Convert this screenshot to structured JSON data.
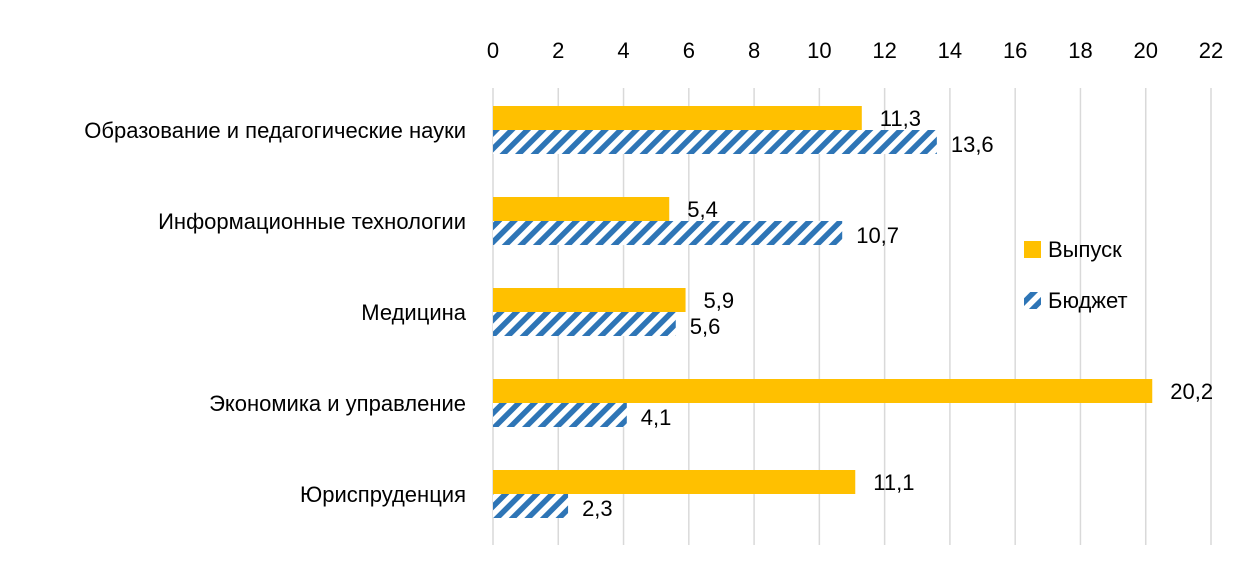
{
  "chart_data": {
    "type": "bar",
    "orientation": "horizontal",
    "title": "",
    "xlabel": "",
    "ylabel": "",
    "xlim": [
      0,
      22
    ],
    "x_ticks": [
      0,
      2,
      4,
      6,
      8,
      10,
      12,
      14,
      16,
      18,
      20,
      22
    ],
    "x_tick_labels": [
      "0",
      "2",
      "4",
      "6",
      "8",
      "10",
      "12",
      "14",
      "16",
      "18",
      "20",
      "22"
    ],
    "axis_position": "top",
    "grid": "vertical",
    "legend_position": "right",
    "categories": [
      "Образование и педагогические науки",
      "Информационные технологии",
      "Медицина",
      "Экономика и управление",
      "Юриспруденция"
    ],
    "series": [
      {
        "name": "Выпуск",
        "color": "#FFC000",
        "pattern": "solid",
        "values": [
          11.3,
          5.4,
          5.9,
          20.2,
          11.1
        ],
        "labels": [
          "11,3",
          "5,4",
          "5,9",
          "20,2",
          "11,1"
        ]
      },
      {
        "name": "Бюджет",
        "color": "#2E75B6",
        "pattern": "diagonal-hatch",
        "values": [
          13.6,
          10.7,
          5.6,
          4.1,
          2.3
        ],
        "labels": [
          "13,6",
          "10,7",
          "5,6",
          "4,1",
          "2,3"
        ]
      }
    ]
  }
}
